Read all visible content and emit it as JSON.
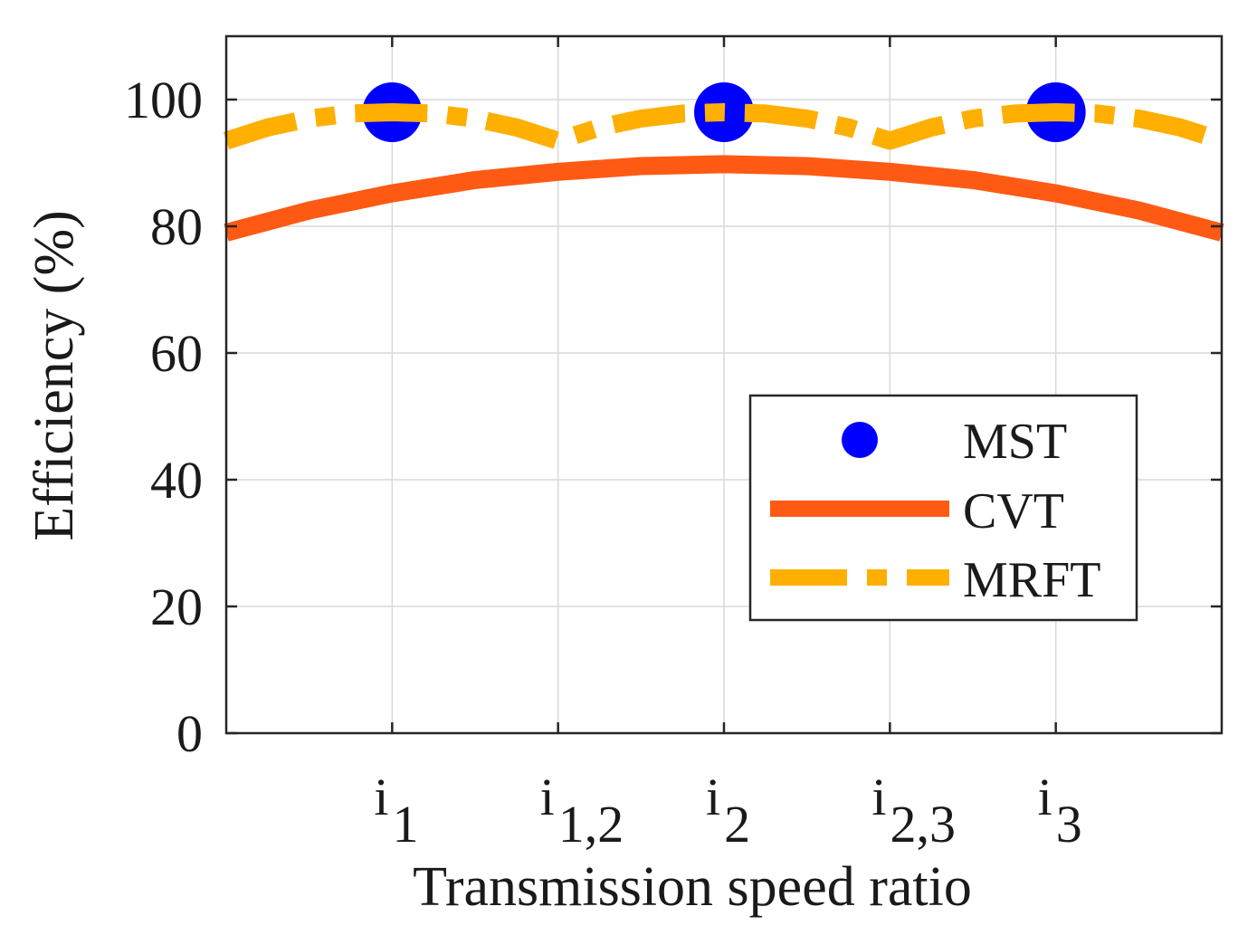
{
  "chart_data": {
    "type": "line",
    "title": "",
    "xlabel": "Transmission speed ratio",
    "ylabel": "Efficiency (%)",
    "ylim": [
      0,
      110
    ],
    "xlim": [
      0,
      6
    ],
    "yticks": [
      0,
      20,
      40,
      60,
      80,
      100
    ],
    "grid": true,
    "legend_position": "center-right",
    "xticks": [
      {
        "x": 1,
        "base": "i",
        "sub": "1"
      },
      {
        "x": 2,
        "base": "i",
        "sub": "1,2"
      },
      {
        "x": 3,
        "base": "i",
        "sub": "2"
      },
      {
        "x": 4,
        "base": "i",
        "sub": "2,3"
      },
      {
        "x": 5,
        "base": "i",
        "sub": "3"
      }
    ],
    "series": [
      {
        "name": "MST",
        "style": "markers",
        "color": "#0000ff",
        "x": [
          1,
          3,
          5
        ],
        "y": [
          98,
          98,
          98
        ]
      },
      {
        "name": "CVT",
        "style": "solid",
        "color": "#ff5a14",
        "x": [
          0,
          0.5,
          1,
          1.5,
          2,
          2.5,
          3,
          3.5,
          4,
          4.5,
          5,
          5.5,
          6
        ],
        "y": [
          79,
          82.5,
          85.2,
          87.3,
          88.6,
          89.5,
          89.8,
          89.5,
          88.6,
          87.3,
          85.2,
          82.5,
          79
        ]
      },
      {
        "name": "MRFT",
        "style": "dash-dot",
        "color": "#ffaf00",
        "x": [
          0,
          0.25,
          0.5,
          0.75,
          1,
          1.25,
          1.5,
          1.75,
          2,
          2.25,
          2.5,
          2.75,
          3,
          3.25,
          3.5,
          3.75,
          4,
          4.25,
          4.5,
          4.75,
          5,
          5.25,
          5.5,
          5.75,
          6
        ],
        "y": [
          93.5,
          95.6,
          97.0,
          97.8,
          98.0,
          97.8,
          97.0,
          95.6,
          93.5,
          95.6,
          97.0,
          97.8,
          98.0,
          97.8,
          97.0,
          95.6,
          93.5,
          95.6,
          97.0,
          97.8,
          98.0,
          97.8,
          97.0,
          95.6,
          93.5
        ]
      }
    ]
  }
}
